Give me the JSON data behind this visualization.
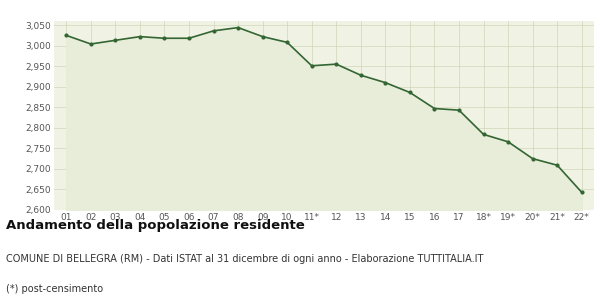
{
  "labels": [
    "01",
    "02",
    "03",
    "04",
    "05",
    "06",
    "07",
    "08",
    "09",
    "10",
    "11*",
    "12",
    "13",
    "14",
    "15",
    "16",
    "17",
    "18*",
    "19*",
    "20*",
    "21*",
    "22*"
  ],
  "values": [
    3025,
    3004,
    3013,
    3022,
    3018,
    3018,
    3036,
    3044,
    3022,
    3008,
    2951,
    2955,
    2928,
    2910,
    2886,
    2847,
    2843,
    2784,
    2766,
    2725,
    2709,
    2643
  ],
  "line_color": "#336633",
  "fill_color": "#e8edda",
  "marker_color": "#336633",
  "bg_color": "#ffffff",
  "plot_bg_color": "#f0f3e3",
  "grid_color": "#d0d5bb",
  "ylim": [
    2600,
    3060
  ],
  "yticks": [
    2600,
    2650,
    2700,
    2750,
    2800,
    2850,
    2900,
    2950,
    3000,
    3050
  ],
  "title": "Andamento della popolazione residente",
  "subtitle": "COMUNE DI BELLEGRA (RM) - Dati ISTAT al 31 dicembre di ogni anno - Elaborazione TUTTITALIA.IT",
  "footnote": "(*) post-censimento",
  "title_fontsize": 9.5,
  "subtitle_fontsize": 7.0,
  "footnote_fontsize": 7.0,
  "tick_fontsize": 6.5
}
